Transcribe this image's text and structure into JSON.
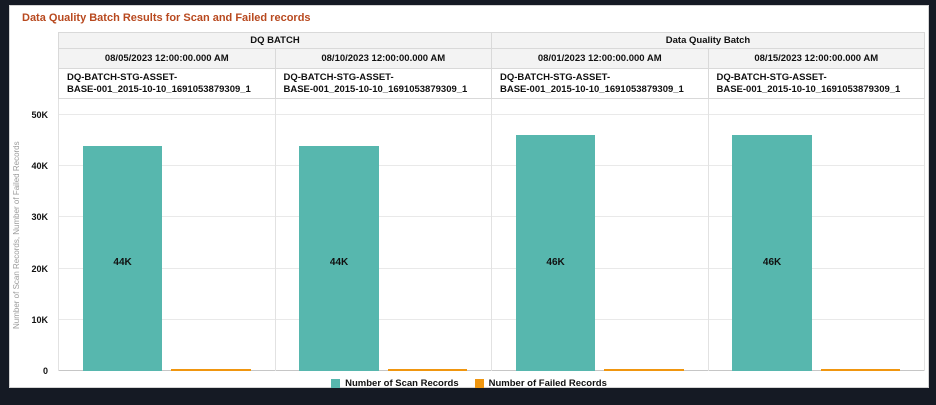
{
  "page": {
    "title": "Data Quality Batch Results for Scan and Failed records"
  },
  "colors": {
    "title": "#b8491f",
    "scan_records": "#57b7ae",
    "failed_records": "#f0960f",
    "header_background": "#f3f3f3"
  },
  "chart_data": {
    "type": "bar",
    "title": "Data Quality Batch Results for Scan and Failed records",
    "group_headers": [
      {
        "label": "DQ BATCH",
        "span": 2
      },
      {
        "label": "Data Quality Batch",
        "span": 2
      }
    ],
    "categories": [
      "08/05/2023 12:00:00.000 AM",
      "08/10/2023 12:00:00.000 AM",
      "08/01/2023 12:00:00.000 AM",
      "08/15/2023 12:00:00.000 AM"
    ],
    "bar_group_labels": [
      "DQ-BATCH-STG-ASSET-\nBASE-001_2015-10-10_1691053879309_1",
      "DQ-BATCH-STG-ASSET-\nBASE-001_2015-10-10_1691053879309_1",
      "DQ-BATCH-STG-ASSET-\nBASE-001_2015-10-10_1691053879309_1",
      "DQ-BATCH-STG-ASSET-\nBASE-001_2015-10-10_1691053879309_1"
    ],
    "series": [
      {
        "name": "Number of Scan Records",
        "color": "#57b7ae",
        "values": [
          44000,
          44000,
          46000,
          46000
        ],
        "value_labels": [
          "44K",
          "44K",
          "46K",
          "46K"
        ]
      },
      {
        "name": "Number of Failed Records",
        "color": "#f0960f",
        "values": [
          0,
          0,
          0,
          0
        ],
        "value_labels": [
          "",
          "",
          "",
          ""
        ]
      }
    ],
    "ylabel": "Number of Scan Records, Number of Failed Records",
    "ylim": [
      0,
      50000
    ],
    "yticks": [
      0,
      10000,
      20000,
      30000,
      40000,
      50000
    ],
    "ytick_labels": [
      "0",
      "10K",
      "20K",
      "30K",
      "40K",
      "50K"
    ],
    "grid": true,
    "legend_position": "bottom"
  }
}
